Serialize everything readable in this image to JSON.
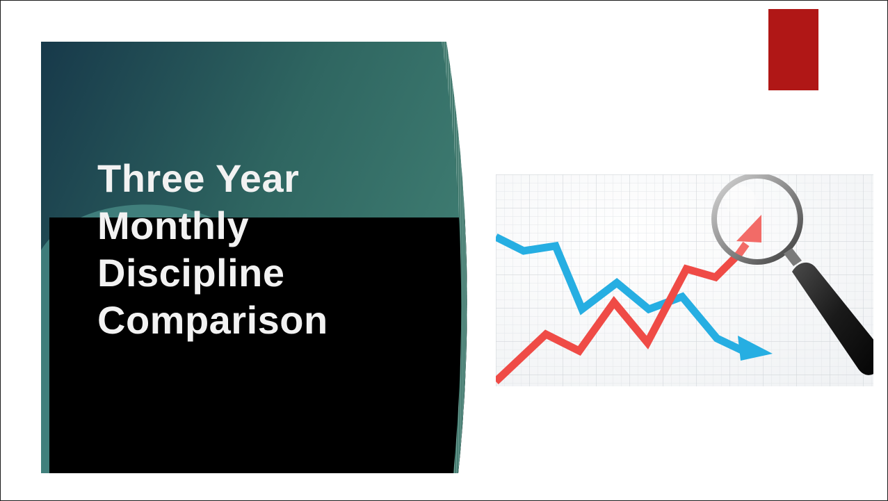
{
  "slide": {
    "title_lines": [
      "Three Year",
      "Monthly",
      "Discipline",
      "Comparison"
    ],
    "accent_color": "#b01716",
    "panel_gradient_colors": [
      "#17394a",
      "#3d7a70"
    ],
    "panel_base_color": "#000000",
    "image": {
      "subject": "line-chart-under-magnifying-glass",
      "rising_line_color": "#ef4b46",
      "falling_line_color": "#26aee2"
    }
  }
}
